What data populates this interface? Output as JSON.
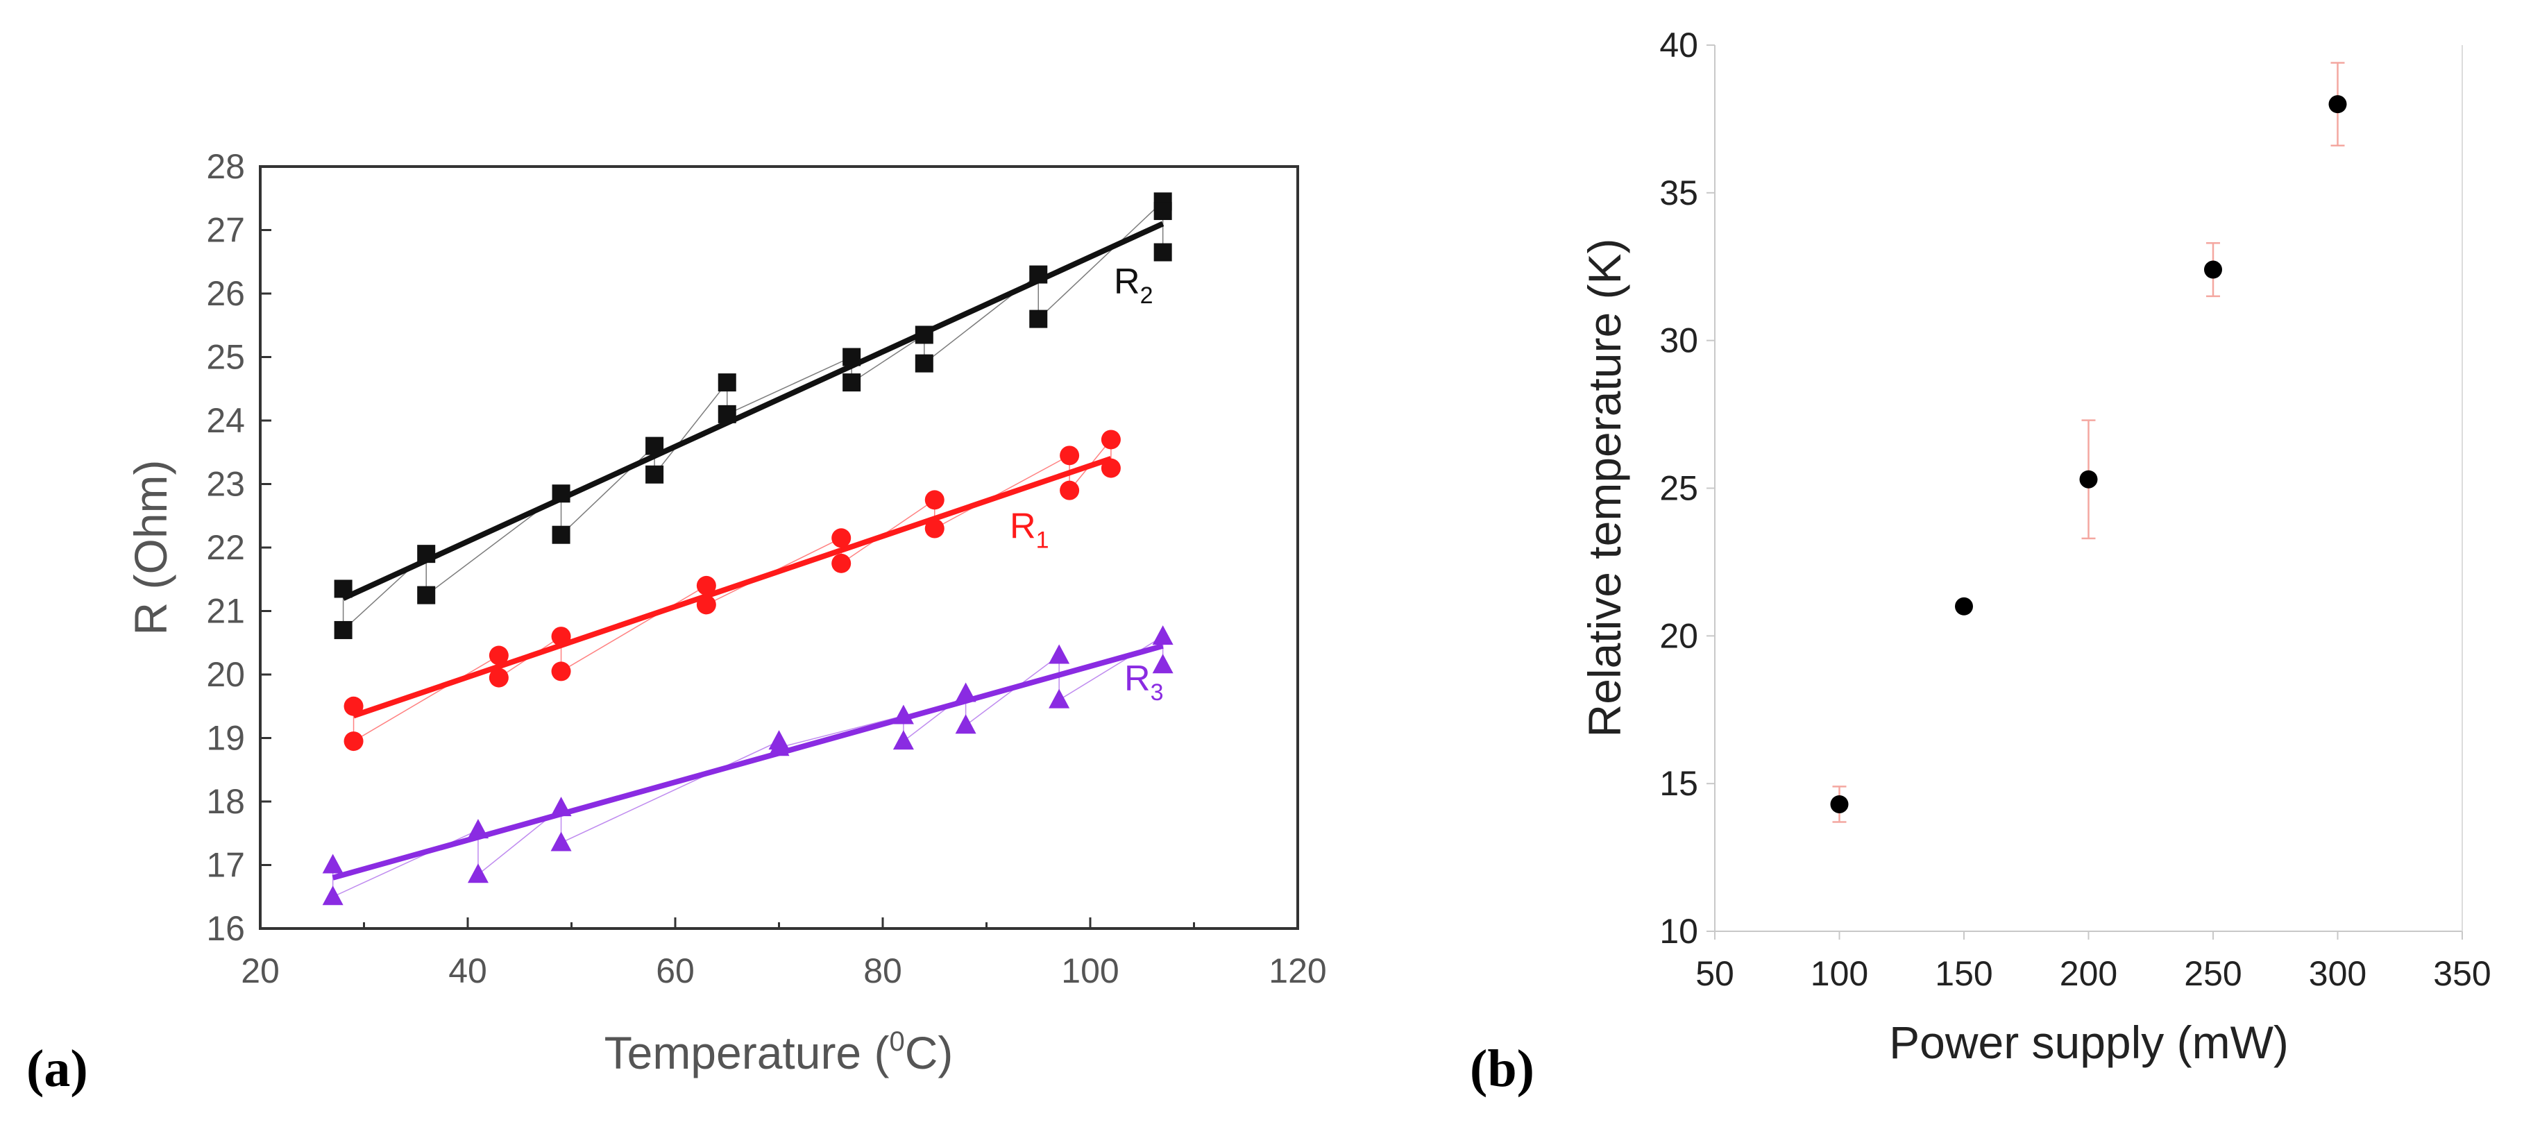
{
  "chart_data": [
    {
      "panel_label": "a",
      "type": "scatter",
      "xlabel": "Temperature (",
      "xlabel_sup": "0",
      "xlabel_suffix": "C)",
      "ylabel": "R (Ohm)",
      "xlim": [
        20,
        120
      ],
      "ylim": [
        16,
        28
      ],
      "xticks": [
        20,
        40,
        60,
        80,
        100,
        120
      ],
      "yticks": [
        16,
        17,
        18,
        19,
        20,
        21,
        22,
        23,
        24,
        25,
        26,
        27,
        28
      ],
      "series": [
        {
          "name": "R",
          "sub": "2",
          "marker": "square",
          "color": "#111111",
          "points": [
            [
              28,
              21.35
            ],
            [
              28,
              20.7
            ],
            [
              36,
              21.9
            ],
            [
              36,
              21.25
            ],
            [
              49,
              22.85
            ],
            [
              49,
              22.2
            ],
            [
              58,
              23.6
            ],
            [
              58,
              23.15
            ],
            [
              65,
              24.6
            ],
            [
              65,
              24.1
            ],
            [
              77,
              25.0
            ],
            [
              77,
              24.6
            ],
            [
              84,
              25.35
            ],
            [
              84,
              24.9
            ],
            [
              95,
              26.3
            ],
            [
              95,
              25.6
            ],
            [
              107,
              27.45
            ],
            [
              107,
              27.3
            ],
            [
              107,
              26.65
            ]
          ],
          "fit": [
            [
              28,
              21.2
            ],
            [
              107,
              27.1
            ]
          ]
        },
        {
          "name": "R",
          "sub": "1",
          "marker": "circle",
          "color": "#ff1a1a",
          "points": [
            [
              29,
              19.5
            ],
            [
              29,
              18.95
            ],
            [
              43,
              20.3
            ],
            [
              43,
              19.95
            ],
            [
              49,
              20.6
            ],
            [
              49,
              20.05
            ],
            [
              63,
              21.4
            ],
            [
              63,
              21.1
            ],
            [
              76,
              22.15
            ],
            [
              76,
              21.75
            ],
            [
              85,
              22.75
            ],
            [
              85,
              22.3
            ],
            [
              98,
              23.45
            ],
            [
              98,
              22.9
            ],
            [
              102,
              23.7
            ],
            [
              102,
              23.25
            ]
          ],
          "fit": [
            [
              29,
              19.35
            ],
            [
              102,
              23.4
            ]
          ]
        },
        {
          "name": "R",
          "sub": "3",
          "marker": "triangle",
          "color": "#8a2be2",
          "points": [
            [
              27,
              17.0
            ],
            [
              27,
              16.5
            ],
            [
              41,
              17.55
            ],
            [
              41,
              16.85
            ],
            [
              49,
              17.9
            ],
            [
              49,
              17.35
            ],
            [
              70,
              18.95
            ],
            [
              70,
              18.85
            ],
            [
              82,
              19.35
            ],
            [
              82,
              18.95
            ],
            [
              88,
              19.7
            ],
            [
              88,
              19.2
            ],
            [
              97,
              20.3
            ],
            [
              97,
              19.6
            ],
            [
              107,
              20.6
            ],
            [
              107,
              20.15
            ]
          ],
          "fit": [
            [
              27,
              16.8
            ],
            [
              107,
              20.45
            ]
          ]
        }
      ]
    },
    {
      "panel_label": "b",
      "type": "scatter",
      "xlabel": "Power supply (mW)",
      "ylabel": "Relative temperature (K)",
      "xlim": [
        50,
        350
      ],
      "ylim": [
        10,
        40
      ],
      "xticks": [
        50,
        100,
        150,
        200,
        250,
        300,
        350
      ],
      "yticks": [
        10,
        15,
        20,
        25,
        30,
        35,
        40
      ],
      "series": [
        {
          "name": "Relative temperature",
          "marker": "circle",
          "color": "#000000",
          "error_color": "#f4a7a0",
          "points": [
            {
              "x": 100,
              "y": 14.3,
              "err": 0.6
            },
            {
              "x": 150,
              "y": 21.0,
              "err": 0.0
            },
            {
              "x": 200,
              "y": 25.3,
              "err": 2.0
            },
            {
              "x": 250,
              "y": 32.4,
              "err": 0.9
            },
            {
              "x": 300,
              "y": 38.0,
              "err": 1.4
            }
          ]
        }
      ]
    }
  ]
}
